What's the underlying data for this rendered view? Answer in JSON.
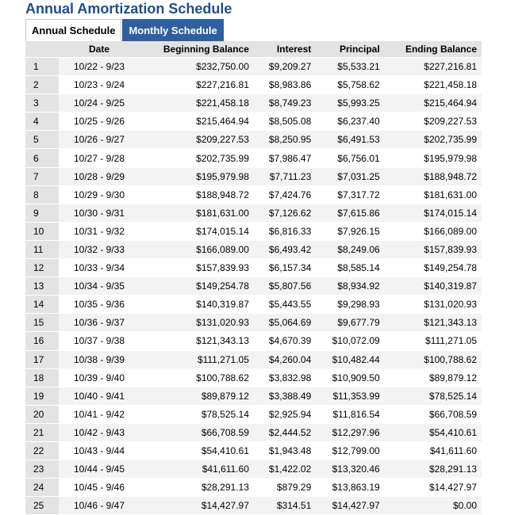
{
  "title": "Annual Amortization Schedule",
  "tabs": [
    {
      "label": "Annual Schedule",
      "active": true
    },
    {
      "label": "Monthly Schedule",
      "active": false
    }
  ],
  "columns": [
    "",
    "Date",
    "Beginning Balance",
    "Interest",
    "Principal",
    "Ending Balance"
  ],
  "rows": [
    [
      "1",
      "10/22 - 9/23",
      "$232,750.00",
      "$9,209.27",
      "$5,533.21",
      "$227,216.81"
    ],
    [
      "2",
      "10/23 - 9/24",
      "$227,216.81",
      "$8,983.86",
      "$5,758.62",
      "$221,458.18"
    ],
    [
      "3",
      "10/24 - 9/25",
      "$221,458.18",
      "$8,749.23",
      "$5,993.25",
      "$215,464.94"
    ],
    [
      "4",
      "10/25 - 9/26",
      "$215,464.94",
      "$8,505.08",
      "$6,237.40",
      "$209,227.53"
    ],
    [
      "5",
      "10/26 - 9/27",
      "$209,227.53",
      "$8,250.95",
      "$6,491.53",
      "$202,735.99"
    ],
    [
      "6",
      "10/27 - 9/28",
      "$202,735.99",
      "$7,986.47",
      "$6,756.01",
      "$195,979.98"
    ],
    [
      "7",
      "10/28 - 9/29",
      "$195,979.98",
      "$7,711.23",
      "$7,031.25",
      "$188,948.72"
    ],
    [
      "8",
      "10/29 - 9/30",
      "$188,948.72",
      "$7,424.76",
      "$7,317.72",
      "$181,631.00"
    ],
    [
      "9",
      "10/30 - 9/31",
      "$181,631.00",
      "$7,126.62",
      "$7,615.86",
      "$174,015.14"
    ],
    [
      "10",
      "10/31 - 9/32",
      "$174,015.14",
      "$6,816.33",
      "$7,926.15",
      "$166,089.00"
    ],
    [
      "11",
      "10/32 - 9/33",
      "$166,089.00",
      "$6,493.42",
      "$8,249.06",
      "$157,839.93"
    ],
    [
      "12",
      "10/33 - 9/34",
      "$157,839.93",
      "$6,157.34",
      "$8,585.14",
      "$149,254.78"
    ],
    [
      "13",
      "10/34 - 9/35",
      "$149,254.78",
      "$5,807.56",
      "$8,934.92",
      "$140,319.87"
    ],
    [
      "14",
      "10/35 - 9/36",
      "$140,319.87",
      "$5,443.55",
      "$9,298.93",
      "$131,020.93"
    ],
    [
      "15",
      "10/36 - 9/37",
      "$131,020.93",
      "$5,064.69",
      "$9,677.79",
      "$121,343.13"
    ],
    [
      "16",
      "10/37 - 9/38",
      "$121,343.13",
      "$4,670.39",
      "$10,072.09",
      "$111,271.05"
    ],
    [
      "17",
      "10/38 - 9/39",
      "$111,271.05",
      "$4,260.04",
      "$10,482.44",
      "$100,788.62"
    ],
    [
      "18",
      "10/39 - 9/40",
      "$100,788.62",
      "$3,832.98",
      "$10,909.50",
      "$89,879.12"
    ],
    [
      "19",
      "10/40 - 9/41",
      "$89,879.12",
      "$3,388.49",
      "$11,353.99",
      "$78,525.14"
    ],
    [
      "20",
      "10/41 - 9/42",
      "$78,525.14",
      "$2,925.94",
      "$11,816.54",
      "$66,708.59"
    ],
    [
      "21",
      "10/42 - 9/43",
      "$66,708.59",
      "$2,444.52",
      "$12,297.96",
      "$54,410.61"
    ],
    [
      "22",
      "10/43 - 9/44",
      "$54,410.61",
      "$1,943.48",
      "$12,799.00",
      "$41,611.60"
    ],
    [
      "23",
      "10/44 - 9/45",
      "$41,611.60",
      "$1,422.02",
      "$13,320.46",
      "$28,291.13"
    ],
    [
      "24",
      "10/45 - 9/46",
      "$28,291.13",
      "$879.29",
      "$13,863.19",
      "$14,427.97"
    ],
    [
      "25",
      "10/46 - 9/47",
      "$14,427.97",
      "$314.51",
      "$14,427.97",
      "$0.00"
    ]
  ]
}
